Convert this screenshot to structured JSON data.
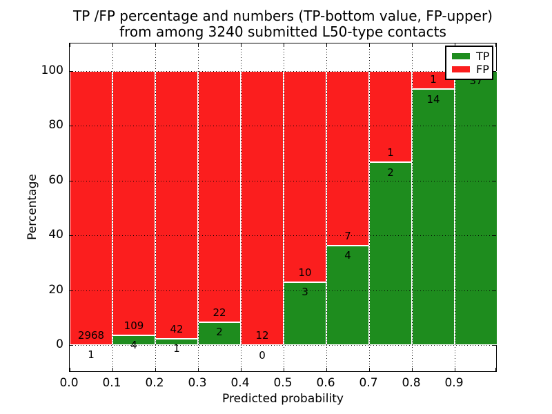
{
  "figure": {
    "title_line1": "TP /FP percentage and numbers (TP-bottom value, FP-upper)",
    "title_line2": "from among 3240 submitted L50-type contacts"
  },
  "chart_data": {
    "type": "bar",
    "stacked": true,
    "orientation": "vertical",
    "title": "TP /FP percentage and numbers (TP-bottom value, FP-upper) from among 3240 submitted L50-type contacts",
    "xlabel": "Predicted probability",
    "ylabel": "Percentage",
    "xlim": [
      0.0,
      1.0
    ],
    "ylim": [
      -10,
      110
    ],
    "bin_width": 0.1,
    "total_contacts": 3240,
    "xtick_labels": [
      "0.0",
      "0.1",
      "0.2",
      "0.3",
      "0.4",
      "0.5",
      "0.6",
      "0.7",
      "0.8",
      "0.9"
    ],
    "ytick_values": [
      0,
      20,
      40,
      60,
      80,
      100
    ],
    "grid": "dotted",
    "legend": {
      "position": "upper right",
      "entries": [
        {
          "label": "TP",
          "color": "#1e8c1e"
        },
        {
          "label": "FP",
          "color": "#fb1e1e"
        }
      ]
    },
    "series": [
      {
        "name": "TP",
        "color": "#1e8c1e",
        "counts": [
          1,
          4,
          1,
          2,
          0,
          3,
          4,
          2,
          14,
          37
        ],
        "percentages": [
          0.03,
          3.54,
          2.33,
          8.33,
          0.0,
          23.08,
          36.36,
          66.67,
          93.33,
          100.0
        ]
      },
      {
        "name": "FP",
        "color": "#fb1e1e",
        "counts": [
          2968,
          109,
          42,
          22,
          12,
          10,
          7,
          1,
          1,
          0
        ],
        "percentages": [
          99.97,
          96.46,
          97.67,
          91.67,
          100.0,
          76.92,
          63.64,
          33.33,
          6.67,
          0.0
        ]
      }
    ],
    "fp_label_visible": [
      true,
      true,
      true,
      true,
      true,
      true,
      true,
      true,
      true,
      false
    ],
    "tp_label_visible": [
      true,
      true,
      true,
      true,
      true,
      true,
      true,
      true,
      true,
      true
    ]
  },
  "colors": {
    "tp_green": "#1e8c1e",
    "fp_red": "#fb1e1e",
    "grid": "#000000",
    "text": "#000000",
    "background": "#ffffff"
  }
}
